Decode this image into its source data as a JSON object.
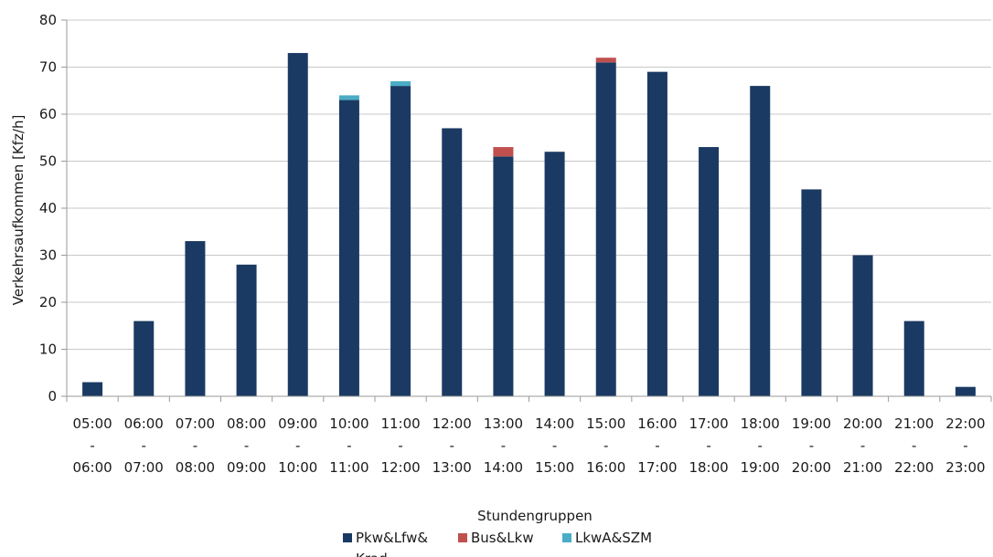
{
  "chart_data": {
    "type": "bar",
    "stacked": true,
    "categories": [
      [
        "05:00",
        "-",
        "06:00"
      ],
      [
        "06:00",
        "-",
        "07:00"
      ],
      [
        "07:00",
        "-",
        "08:00"
      ],
      [
        "08:00",
        "-",
        "09:00"
      ],
      [
        "09:00",
        "-",
        "10:00"
      ],
      [
        "10:00",
        "-",
        "11:00"
      ],
      [
        "11:00",
        "-",
        "12:00"
      ],
      [
        "12:00",
        "-",
        "13:00"
      ],
      [
        "13:00",
        "-",
        "14:00"
      ],
      [
        "14:00",
        "-",
        "15:00"
      ],
      [
        "15:00",
        "-",
        "16:00"
      ],
      [
        "16:00",
        "-",
        "17:00"
      ],
      [
        "17:00",
        "-",
        "18:00"
      ],
      [
        "18:00",
        "-",
        "19:00"
      ],
      [
        "19:00",
        "-",
        "20:00"
      ],
      [
        "20:00",
        "-",
        "21:00"
      ],
      [
        "21:00",
        "-",
        "22:00"
      ],
      [
        "22:00",
        "-",
        "23:00"
      ]
    ],
    "series": [
      {
        "name": "Pkw&Lfw&Krad",
        "legend_lines": [
          "Pkw&Lfw&",
          "Krad"
        ],
        "color": "#1b3a63",
        "values": [
          3,
          16,
          33,
          28,
          73,
          63,
          66,
          57,
          51,
          52,
          71,
          69,
          53,
          66,
          44,
          30,
          16,
          2
        ]
      },
      {
        "name": "Bus&Lkw",
        "legend_lines": [
          "Bus&Lkw"
        ],
        "color": "#c0504d",
        "values": [
          0,
          0,
          0,
          0,
          0,
          0,
          0,
          0,
          2,
          0,
          1,
          0,
          0,
          0,
          0,
          0,
          0,
          0
        ]
      },
      {
        "name": "LkwA&SZM",
        "legend_lines": [
          "LkwA&SZM"
        ],
        "color": "#4bacc6",
        "values": [
          0,
          0,
          0,
          0,
          0,
          1,
          1,
          0,
          0,
          0,
          0,
          0,
          0,
          0,
          0,
          0,
          0,
          0
        ]
      }
    ],
    "xlabel": "Stundengruppen",
    "ylabel": "Verkehrsaufkommen [Kfz/h]",
    "ylim": [
      0,
      80
    ],
    "yticks": [
      0,
      10,
      20,
      30,
      40,
      50,
      60,
      70,
      80
    ],
    "grid": "horizontal",
    "legend_position": "bottom"
  }
}
